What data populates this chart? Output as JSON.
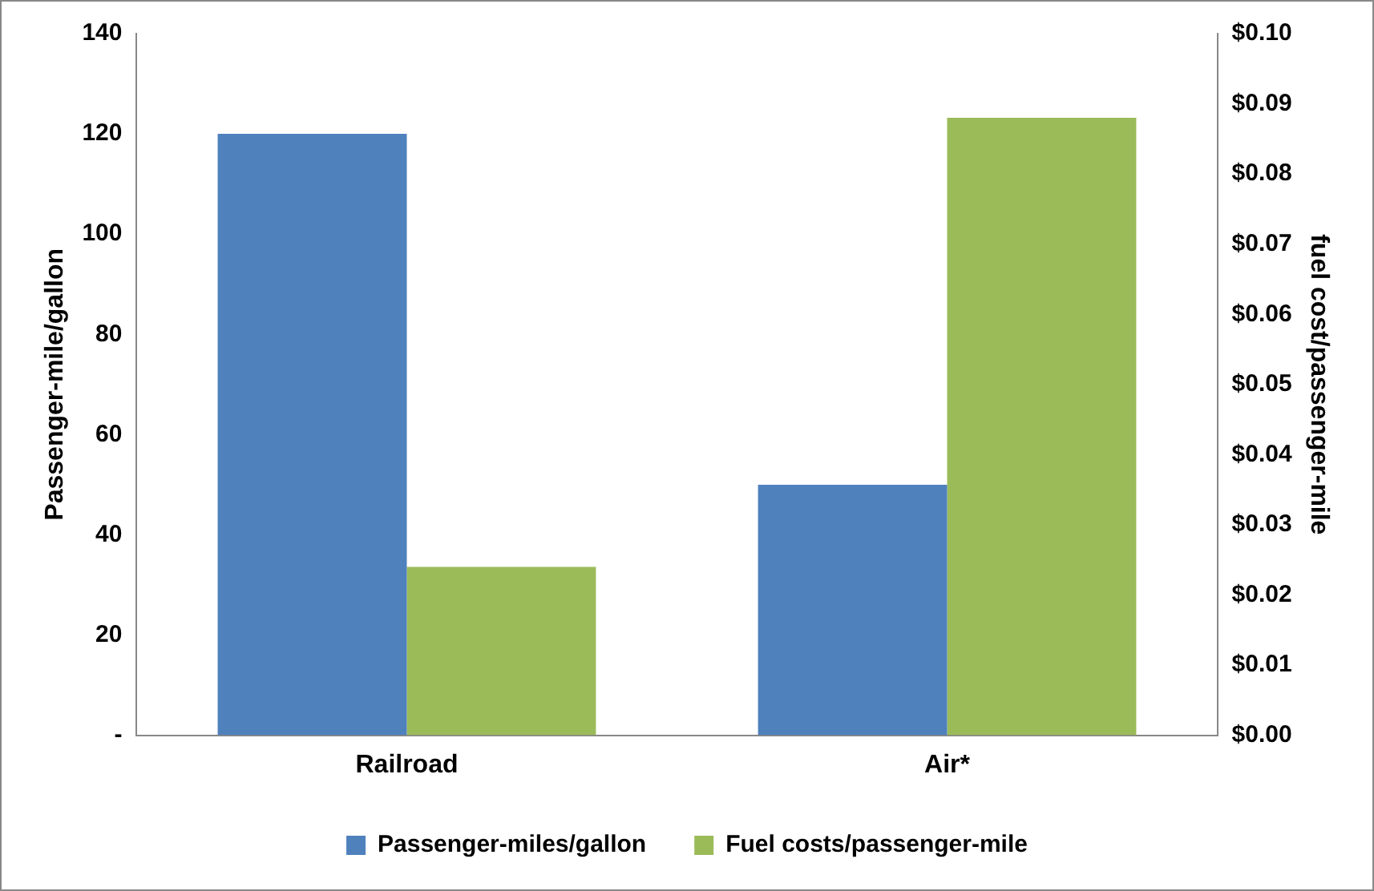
{
  "chart_data": {
    "type": "bar",
    "categories": [
      "Railroad",
      "Air*"
    ],
    "ylabel": "Passenger-mile/gallon",
    "y2label": "fuel cost/passenger-mile",
    "series": [
      {
        "name": "Passenger-miles/gallon",
        "color": "#4f81bd",
        "values": [
          120,
          50
        ]
      },
      {
        "name": "Fuel costs/passenger-mile",
        "color": "#9bbb59",
        "values": [
          0.024,
          0.088
        ],
        "axis": "y2"
      }
    ],
    "ylim": [
      0,
      140
    ],
    "yticks": [
      {
        "value": 0,
        "label": "-"
      },
      20,
      40,
      60,
      80,
      100,
      120,
      140
    ],
    "y2lim": [
      0,
      0.1
    ],
    "y2ticks": [
      {
        "value": 0,
        "label": "$0.00"
      },
      {
        "value": 0.01,
        "label": "$0.01"
      },
      {
        "value": 0.02,
        "label": "$0.02"
      },
      {
        "value": 0.03,
        "label": "$0.03"
      },
      {
        "value": 0.04,
        "label": "$0.04"
      },
      {
        "value": 0.05,
        "label": "$0.05"
      },
      {
        "value": 0.06,
        "label": "$0.06"
      },
      {
        "value": 0.07,
        "label": "$0.07"
      },
      {
        "value": 0.08,
        "label": "$0.08"
      },
      {
        "value": 0.09,
        "label": "$0.09"
      },
      {
        "value": 0.1,
        "label": "$0.10"
      }
    ],
    "grid": false,
    "legend": "bottom"
  }
}
